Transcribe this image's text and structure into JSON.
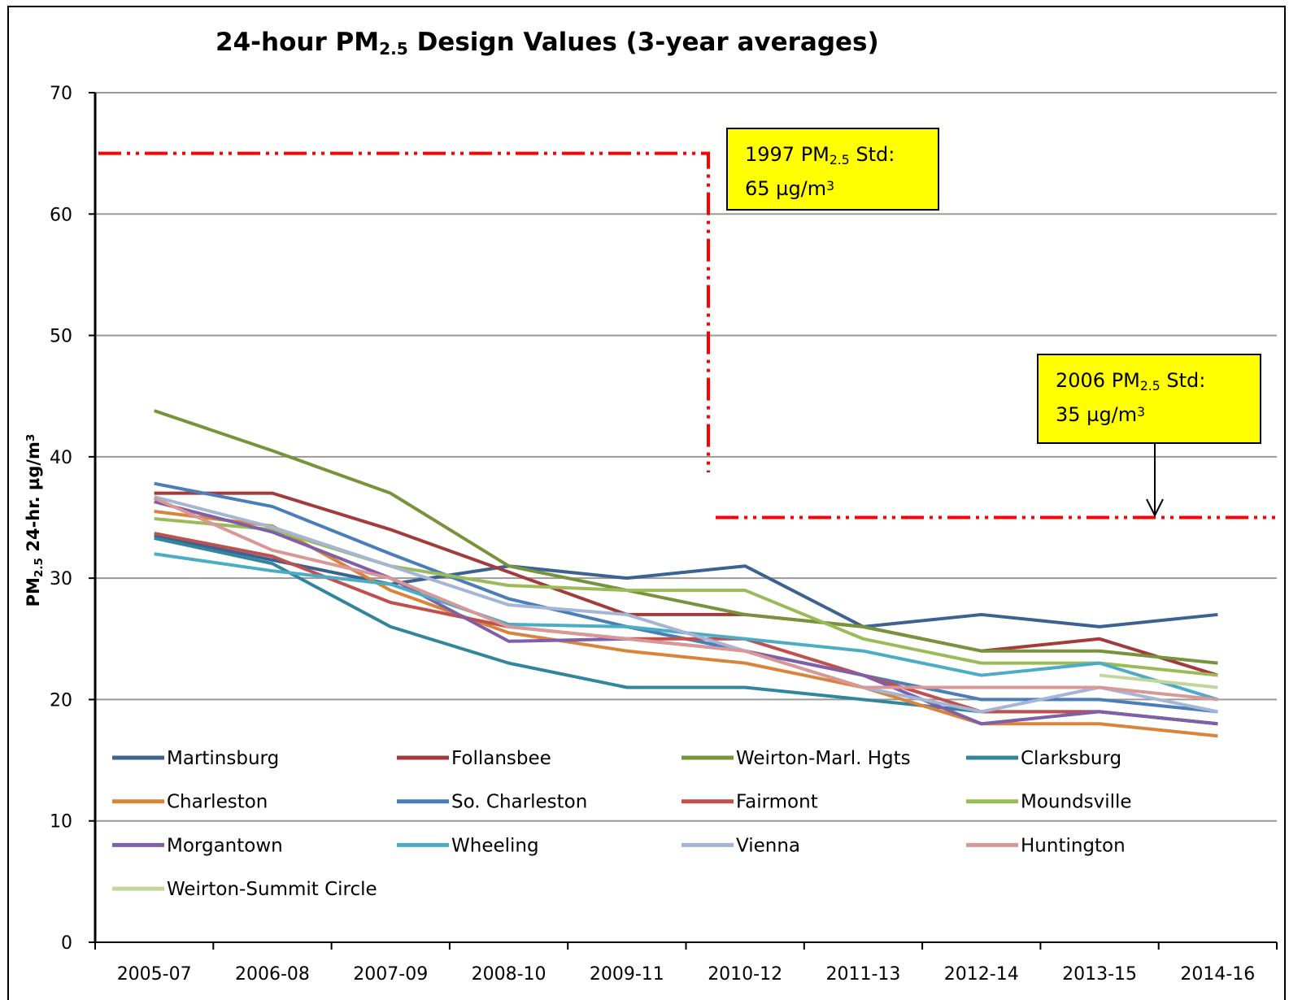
{
  "chart_data": {
    "type": "line",
    "title": [
      {
        "t": "24-hour PM"
      },
      {
        "t": "2.5",
        "sub": true
      },
      {
        "t": " Design Values (3-year averages)"
      }
    ],
    "ylabel": [
      {
        "t": "PM"
      },
      {
        "t": "2.5",
        "sub": true
      },
      {
        "t": " 24-hr. µg/m"
      },
      {
        "t": "3",
        "sup": true
      }
    ],
    "categories": [
      "2005-07",
      "2006-08",
      "2007-09",
      "2008-10",
      "2009-11",
      "2010-12",
      "2011-13",
      "2012-14",
      "2013-15",
      "2014-16"
    ],
    "ylim": [
      0,
      70
    ],
    "yticks": [
      0,
      10,
      20,
      30,
      40,
      50,
      60,
      70
    ],
    "grid": true,
    "series": [
      {
        "name": "Martinsburg",
        "color": "#3b6291",
        "values": [
          33.5,
          31.5,
          29.5,
          31,
          30,
          31,
          26,
          27,
          26,
          27
        ]
      },
      {
        "name": "Follansbee",
        "color": "#a33b3a",
        "values": [
          37,
          37,
          34,
          30.5,
          27,
          27,
          26,
          24,
          25,
          22
        ]
      },
      {
        "name": "Weirton-Marl. Hgts",
        "color": "#77933c",
        "values": [
          43.8,
          40.5,
          37,
          31,
          29,
          27,
          26,
          24,
          24,
          23
        ]
      },
      {
        "name": "Clarksburg",
        "color": "#31859c",
        "values": [
          33.3,
          31.2,
          26,
          23,
          21,
          21,
          20,
          19,
          19,
          18
        ]
      },
      {
        "name": "Charleston",
        "color": "#d9843b",
        "values": [
          35.5,
          34.3,
          29,
          25.5,
          24,
          23,
          21,
          18,
          18,
          17
        ]
      },
      {
        "name": "So. Charleston",
        "color": "#4a7ebb",
        "values": [
          37.8,
          35.9,
          32,
          28.3,
          26,
          24,
          22,
          20,
          20,
          19
        ]
      },
      {
        "name": "Fairmont",
        "color": "#c0504d",
        "values": [
          33.7,
          31.8,
          28,
          26,
          25,
          25,
          22,
          19,
          19,
          18
        ]
      },
      {
        "name": "Moundsville",
        "color": "#9bbb59",
        "values": [
          34.9,
          34,
          31,
          29.4,
          29,
          29,
          25,
          23,
          23,
          22
        ]
      },
      {
        "name": "Morgantown",
        "color": "#7f5fa8",
        "values": [
          36.3,
          33.8,
          30,
          24.8,
          25,
          24,
          22,
          18,
          19,
          18
        ]
      },
      {
        "name": "Wheeling",
        "color": "#4bacc6",
        "values": [
          32,
          30.6,
          29.5,
          26.2,
          26,
          25,
          24,
          22,
          23,
          20
        ]
      },
      {
        "name": "Vienna",
        "color": "#a5b5d6",
        "values": [
          36.7,
          34.2,
          31,
          27.8,
          27,
          24,
          21,
          19,
          21,
          19
        ]
      },
      {
        "name": "Huntington",
        "color": "#d99795",
        "values": [
          36.6,
          32.3,
          30,
          26,
          25,
          24,
          21,
          21,
          21,
          20
        ]
      },
      {
        "name": "Weirton-Summit Circle",
        "color": "#c3d69b",
        "values": [
          null,
          null,
          null,
          null,
          null,
          null,
          null,
          null,
          22,
          21
        ]
      }
    ],
    "reference_lines": [
      {
        "value": 65,
        "color": "#ff0000",
        "label": [
          [
            {
              "t": "1997 PM"
            },
            {
              "t": "2.5",
              "sub": true
            },
            {
              "t": " Std:"
            }
          ],
          [
            {
              "t": "65 µg/m"
            },
            {
              "t": "3",
              "sup": true
            }
          ]
        ]
      },
      {
        "value": 35,
        "color": "#ff0000",
        "label": [
          [
            {
              "t": "2006 PM"
            },
            {
              "t": "2.5",
              "sub": true
            },
            {
              "t": " Std:"
            }
          ],
          [
            {
              "t": "35 µg/m"
            },
            {
              "t": "3",
              "sup": true
            }
          ]
        ]
      }
    ]
  }
}
